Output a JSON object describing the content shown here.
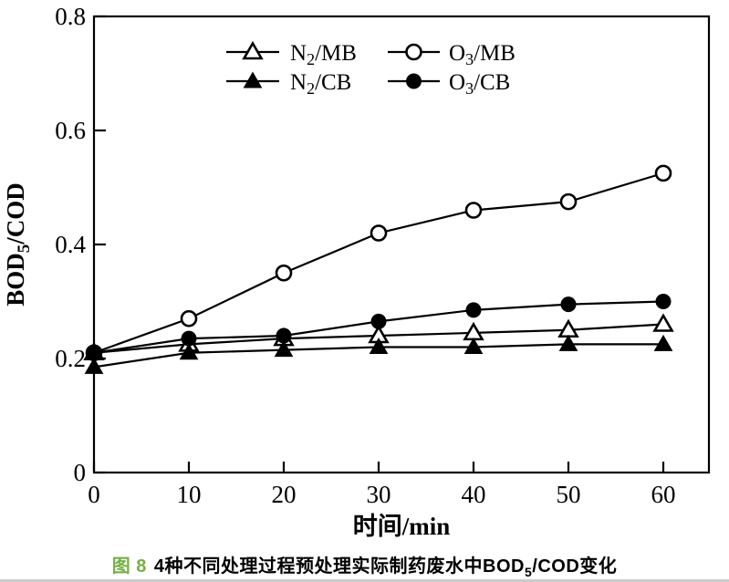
{
  "page": {
    "background": "#ffffff"
  },
  "colors": {
    "ink": "#000000",
    "caption_label_green": "#76b043",
    "bottom_divider": "#cccccc"
  },
  "chart_data": {
    "type": "line",
    "x": [
      0,
      10,
      20,
      30,
      40,
      50,
      60
    ],
    "series": [
      {
        "name": "N2/MB",
        "name_parts": {
          "pre": "N",
          "sub": "2",
          "post": "/MB"
        },
        "marker": "triangle-open",
        "values": [
          0.21,
          0.225,
          0.235,
          0.24,
          0.245,
          0.25,
          0.26
        ]
      },
      {
        "name": "N2/CB",
        "name_parts": {
          "pre": "N",
          "sub": "2",
          "post": "/CB"
        },
        "marker": "triangle-filled",
        "values": [
          0.185,
          0.21,
          0.215,
          0.22,
          0.22,
          0.225,
          0.225
        ]
      },
      {
        "name": "O3/MB",
        "name_parts": {
          "pre": "O",
          "sub": "3",
          "post": "/MB"
        },
        "marker": "circle-open",
        "values": [
          0.21,
          0.27,
          0.35,
          0.42,
          0.46,
          0.475,
          0.525
        ]
      },
      {
        "name": "O3/CB",
        "name_parts": {
          "pre": "O",
          "sub": "3",
          "post": "/CB"
        },
        "marker": "circle-filled",
        "values": [
          0.21,
          0.235,
          0.24,
          0.265,
          0.285,
          0.295,
          0.3
        ]
      }
    ],
    "xlabel": "时间/min",
    "ylabel": "BOD5/COD",
    "ylabel_parts": {
      "pre": "BOD",
      "sub": "5",
      "post": "/COD"
    },
    "xticks": [
      0,
      10,
      20,
      30,
      40,
      50,
      60
    ],
    "yticks": [
      0,
      0.2,
      0.4,
      0.6,
      0.8
    ],
    "xlim": [
      0,
      64.8
    ],
    "ylim": [
      0,
      0.8
    ],
    "grid": false,
    "legend_position": "inside-top-center",
    "line_color": "#000000"
  },
  "caption": {
    "fig_label": "图 8",
    "text_before": "4种不同处理过程预处理实际制药废水中",
    "bod_pre": "BOD",
    "bod_sub": "5",
    "bod_post": "/COD",
    "text_after": "变化"
  }
}
